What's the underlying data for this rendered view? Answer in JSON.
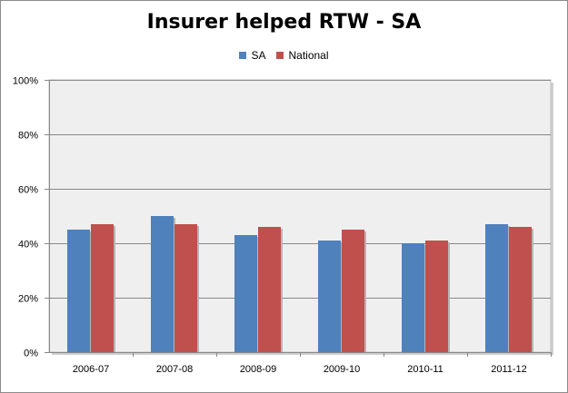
{
  "chart_data": {
    "type": "bar",
    "title": "Insurer helped RTW - SA",
    "categories": [
      "2006-07",
      "2007-08",
      "2008-09",
      "2009-10",
      "2010-11",
      "2011-12"
    ],
    "series": [
      {
        "name": "SA",
        "color": "#4f81bd",
        "values": [
          45,
          50,
          43,
          41,
          40,
          47
        ]
      },
      {
        "name": "National",
        "color": "#c0504d",
        "values": [
          47,
          47,
          46,
          45,
          41,
          46
        ]
      }
    ],
    "xlabel": "",
    "ylabel": "",
    "ylim": [
      0,
      100
    ],
    "yticks": [
      "0%",
      "20%",
      "40%",
      "60%",
      "80%",
      "100%"
    ],
    "grid": true,
    "legend_position": "top",
    "plot_background": "#efefef"
  }
}
